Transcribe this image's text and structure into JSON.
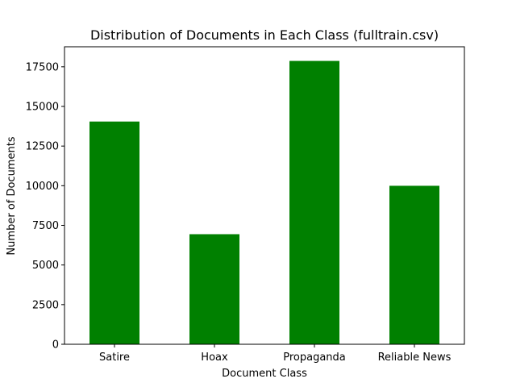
{
  "chart_data": {
    "type": "bar",
    "title": "Distribution of Documents in Each Class (fulltrain.csv)",
    "xlabel": "Document Class",
    "ylabel": "Number of Documents",
    "categories": [
      "Satire",
      "Hoax",
      "Propaganda",
      "Reliable News"
    ],
    "values": [
      14047,
      6942,
      17870,
      9995
    ],
    "ylim": [
      0,
      18763
    ],
    "yticks": [
      0,
      2500,
      5000,
      7500,
      10000,
      12500,
      15000,
      17500
    ],
    "ytick_labels": [
      "0",
      "2500",
      "5000",
      "7500",
      "10000",
      "12500",
      "15000",
      "17500"
    ],
    "grid": false,
    "legend": "none",
    "colors": {
      "bar": "#008000",
      "axis": "#000000",
      "background": "#ffffff"
    }
  }
}
